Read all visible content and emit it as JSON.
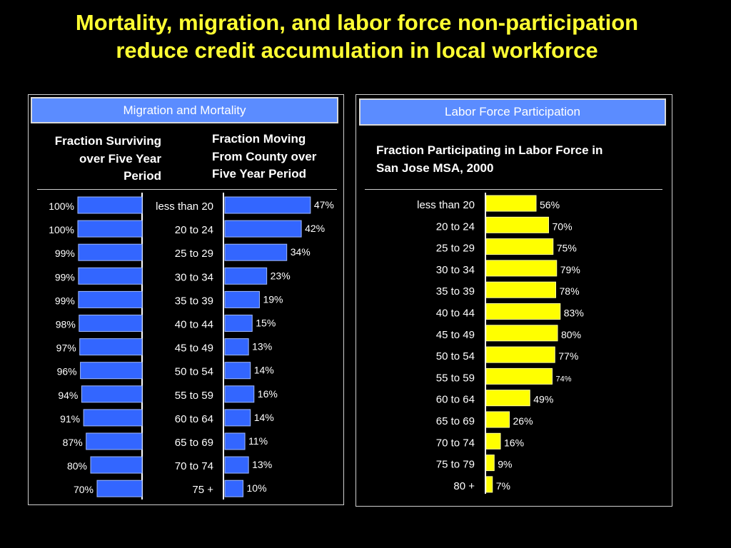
{
  "title_line1": "Mortality, migration, and labor force non-participation",
  "title_line2": "reduce credit accumulation in local workforce",
  "left_panel": {
    "header": "Migration and Mortality",
    "surviving_title": [
      "Fraction Surviving",
      "over Five Year",
      "Period"
    ],
    "moving_title": [
      "Fraction Moving",
      "From County over",
      "Five Year Period"
    ]
  },
  "right_panel": {
    "header": "Labor Force Participation",
    "participating_title": [
      "Fraction Participating in Labor Force in",
      "San Jose MSA, 2000"
    ]
  },
  "chart_data": [
    {
      "type": "bar",
      "name": "surviving",
      "title": "Fraction Surviving over Five Year Period",
      "categories": [
        "less than 20",
        "20 to 24",
        "25 to 29",
        "30 to 34",
        "35 to 39",
        "40 to 44",
        "45 to 49",
        "50 to 54",
        "55 to 59",
        "60 to 64",
        "65 to 69",
        "70 to 74",
        "75 +"
      ],
      "values": [
        100,
        100,
        99,
        99,
        99,
        98,
        97,
        96,
        94,
        91,
        87,
        80,
        70
      ],
      "labels": [
        "100%",
        "100%",
        "99%",
        "99%",
        "99%",
        "98%",
        "97%",
        "96%",
        "94%",
        "91%",
        "87%",
        "80%",
        "70%"
      ],
      "color": "#3366ff"
    },
    {
      "type": "bar",
      "name": "moving",
      "title": "Fraction Moving From County over Five Year Period",
      "categories": [
        "less than 20",
        "20 to 24",
        "25 to 29",
        "30 to 34",
        "35 to 39",
        "40 to 44",
        "45 to 49",
        "50 to 54",
        "55 to 59",
        "60 to 64",
        "65 to 69",
        "70 to 74",
        "75 +"
      ],
      "values": [
        47,
        42,
        34,
        23,
        19,
        15,
        13,
        14,
        16,
        14,
        11,
        13,
        10
      ],
      "labels": [
        "47%",
        "42%",
        "34%",
        "23%",
        "19%",
        "15%",
        "13%",
        "14%",
        "16%",
        "14%",
        "11%",
        "13%",
        "10%"
      ],
      "color": "#3366ff"
    },
    {
      "type": "bar",
      "name": "participating",
      "title": "Fraction Participating in Labor Force in San Jose MSA, 2000",
      "categories": [
        "less than 20",
        "20 to 24",
        "25 to 29",
        "30 to 34",
        "35 to 39",
        "40 to 44",
        "45 to 49",
        "50 to 54",
        "55 to 59",
        "60 to 64",
        "65 to 69",
        "70 to 74",
        "75 to 79",
        "80 +"
      ],
      "values": [
        56,
        70,
        75,
        79,
        78,
        83,
        80,
        77,
        74,
        49,
        26,
        16,
        9,
        7
      ],
      "labels": [
        "56%",
        "70%",
        "75%",
        "79%",
        "78%",
        "83%",
        "80%",
        "77%",
        "74%",
        "49%",
        "26%",
        "16%",
        "9%",
        "7%"
      ],
      "color": "#ffff00"
    }
  ]
}
